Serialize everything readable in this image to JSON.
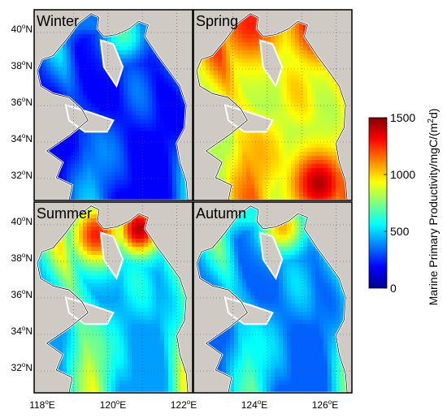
{
  "figure": {
    "panels": [
      {
        "label": "Winter",
        "field": {
          "low": 0.12,
          "coast": 0.35,
          "hot": [
            [
              0.55,
              0.12,
              0.1,
              0.45
            ]
          ]
        }
      },
      {
        "label": "Spring",
        "field": {
          "low": 0.55,
          "coast": 0.85,
          "hot": [
            [
              0.8,
              0.06,
              0.14,
              0.95
            ],
            [
              0.78,
              0.9,
              0.12,
              0.95
            ],
            [
              0.35,
              0.06,
              0.15,
              0.85
            ]
          ]
        }
      },
      {
        "label": "Summer",
        "field": {
          "low": 0.28,
          "coast": 0.75,
          "hot": [
            [
              0.38,
              0.16,
              0.12,
              0.85
            ],
            [
              0.65,
              0.13,
              0.1,
              0.95
            ]
          ]
        }
      },
      {
        "label": "Autumn",
        "field": {
          "low": 0.22,
          "coast": 0.55,
          "hot": [
            [
              0.55,
              0.12,
              0.1,
              0.7
            ]
          ]
        }
      }
    ],
    "x_ticks": [
      {
        "deg": "118",
        "unit": "E"
      },
      {
        "deg": "120",
        "unit": "E"
      },
      {
        "deg": "122",
        "unit": "E"
      },
      {
        "deg": "124",
        "unit": "E"
      },
      {
        "deg": "126",
        "unit": "E"
      }
    ],
    "y_ticks": [
      {
        "deg": "40",
        "unit": "N"
      },
      {
        "deg": "38",
        "unit": "N"
      },
      {
        "deg": "36",
        "unit": "N"
      },
      {
        "deg": "34",
        "unit": "N"
      },
      {
        "deg": "32",
        "unit": "N"
      }
    ],
    "colorbar": {
      "min": 0,
      "max": 1500,
      "ticks": [
        "1500",
        "1000",
        "500",
        "0"
      ],
      "label_main": "Marine Primary Productivity/mgC/(m",
      "label_sup": "2",
      "label_end": "d)"
    },
    "colors": {
      "land": "#cfcbc4",
      "frame": "#000000",
      "coastline": "#000000"
    }
  }
}
